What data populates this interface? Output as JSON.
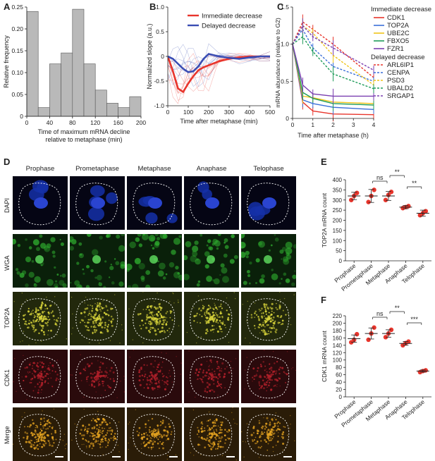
{
  "panels": {
    "A": {
      "letter": "A"
    },
    "B": {
      "letter": "B"
    },
    "C": {
      "letter": "C"
    },
    "D": {
      "letter": "D"
    },
    "E": {
      "letter": "E"
    },
    "F": {
      "letter": "F"
    }
  },
  "chart_data": [
    {
      "id": "A",
      "type": "bar",
      "xlabel": "Time of maximum mRNA decline relative to metaphase (min)",
      "xlabel_line1": "Time of maximum mRNA decline",
      "xlabel_line2": "relative to metaphase (min)",
      "ylabel": "Relative frequency",
      "bin_edges": [
        0,
        20,
        40,
        60,
        80,
        100,
        120,
        140,
        160,
        180,
        200
      ],
      "values": [
        0.24,
        0.02,
        0.12,
        0.145,
        0.245,
        0.12,
        0.06,
        0.03,
        0.02,
        0.045
      ],
      "xticks": [
        "0",
        "40",
        "80",
        "120",
        "160",
        "200"
      ],
      "yticks": [
        "0",
        "0.05",
        "0.10",
        "0.15",
        "0.20",
        "0.25"
      ],
      "ylim": [
        0,
        0.25
      ],
      "bar_color": "#b9b9b9"
    },
    {
      "id": "B",
      "type": "line",
      "xlabel": "Time after metaphase (min)",
      "ylabel": "Normalized slope (a.u.)",
      "xticks": [
        "0",
        "100",
        "200",
        "300",
        "400",
        "500"
      ],
      "yticks": [
        "-1.0",
        "-0.5",
        "0",
        "0.5",
        "1.0"
      ],
      "xlim": [
        0,
        500
      ],
      "ylim": [
        -1,
        1
      ],
      "legend_position": "top-right",
      "series": [
        {
          "name": "Immediate decrease",
          "color": "#e8352c",
          "x": [
            0,
            25,
            50,
            75,
            100,
            125,
            150,
            175,
            200,
            250,
            300,
            350,
            400,
            450,
            500
          ],
          "y": [
            0,
            -0.3,
            -0.65,
            -0.72,
            -0.55,
            -0.4,
            -0.28,
            -0.22,
            -0.18,
            -0.1,
            -0.05,
            -0.02,
            0,
            0,
            0
          ]
        },
        {
          "name": "Delayed decrease",
          "color": "#3a4db3",
          "x": [
            0,
            25,
            50,
            75,
            100,
            125,
            150,
            175,
            200,
            250,
            300,
            350,
            400,
            450,
            500
          ],
          "y": [
            0,
            -0.05,
            -0.15,
            -0.25,
            -0.32,
            -0.3,
            -0.2,
            -0.05,
            0.05,
            0.0,
            -0.03,
            -0.05,
            -0.02,
            0,
            0
          ]
        }
      ]
    },
    {
      "id": "C",
      "type": "line",
      "xlabel": "Time after metaphase (h)",
      "ylabel": "mRNA abundance (relative to G2)",
      "x": [
        0,
        0.5,
        1,
        2,
        4
      ],
      "xticks": [
        "0",
        "1",
        "2",
        "3",
        "4"
      ],
      "yticks": [
        "0",
        "0.5",
        "1.0",
        "1.5"
      ],
      "ylim": [
        0,
        1.5
      ],
      "legend_group1": "Immediate decrease",
      "legend_group2": "Delayed decrease",
      "series": [
        {
          "name": "CDK1",
          "color": "#e8352c",
          "style": "solid",
          "y": [
            1.0,
            0.22,
            0.1,
            0.06,
            0.05
          ]
        },
        {
          "name": "TOP2A",
          "color": "#3a6fd8",
          "style": "solid",
          "y": [
            1.0,
            0.25,
            0.2,
            0.15,
            0.12
          ]
        },
        {
          "name": "UBE2C",
          "color": "#f0c419",
          "style": "solid",
          "y": [
            1.0,
            0.3,
            0.28,
            0.22,
            0.2
          ]
        },
        {
          "name": "FBXO5",
          "color": "#1f9c5a",
          "style": "solid",
          "y": [
            1.0,
            0.35,
            0.27,
            0.2,
            0.18
          ]
        },
        {
          "name": "FZR1",
          "color": "#7a3fb0",
          "style": "solid",
          "y": [
            1.0,
            0.45,
            0.33,
            0.3,
            0.3
          ]
        },
        {
          "name": "ARL6IP1",
          "color": "#e8352c",
          "style": "dashed",
          "y": [
            1.0,
            1.3,
            1.2,
            1.0,
            0.55
          ]
        },
        {
          "name": "CENPA",
          "color": "#3a6fd8",
          "style": "dashed",
          "y": [
            1.0,
            1.2,
            0.95,
            0.7,
            0.5
          ]
        },
        {
          "name": "PSD3",
          "color": "#f0c419",
          "style": "dashed",
          "y": [
            1.0,
            1.25,
            1.15,
            0.85,
            0.45
          ]
        },
        {
          "name": "UBALD2",
          "color": "#1f9c5a",
          "style": "dashed",
          "y": [
            1.0,
            1.1,
            0.9,
            0.6,
            0.4
          ]
        },
        {
          "name": "SRGAP1",
          "color": "#7a3fb0",
          "style": "dashed",
          "y": [
            1.0,
            1.25,
            1.1,
            0.95,
            0.65
          ]
        }
      ]
    },
    {
      "id": "E",
      "type": "scatter",
      "ylabel": "TOP2A mRNA count",
      "categories": [
        "Prophase",
        "Prometaphase",
        "Metaphase",
        "Anaphase",
        "Telophase"
      ],
      "yticks": [
        "0",
        "50",
        "100",
        "150",
        "200",
        "250",
        "300",
        "350",
        "400"
      ],
      "ylim": [
        0,
        400
      ],
      "means": [
        320,
        320,
        320,
        265,
        235
      ],
      "sd": [
        18,
        32,
        22,
        8,
        15
      ],
      "points": [
        [
          300,
          320,
          335
        ],
        [
          290,
          320,
          350
        ],
        [
          300,
          325,
          340
        ],
        [
          260,
          265,
          270
        ],
        [
          225,
          235,
          245
        ]
      ],
      "significance": [
        {
          "label": "ns",
          "from": 1,
          "to": 2
        },
        {
          "label": "**",
          "from": 2,
          "to": 3
        },
        {
          "label": "**",
          "from": 3,
          "to": 4
        }
      ],
      "dot_color": "#e8352c"
    },
    {
      "id": "F",
      "type": "scatter",
      "ylabel": "CDK1 mRNA count",
      "categories": [
        "Prophase",
        "Prometaphase",
        "Metaphase",
        "Anaphase",
        "Telophase"
      ],
      "yticks": [
        "0",
        "20",
        "40",
        "60",
        "80",
        "100",
        "120",
        "140",
        "160",
        "180",
        "200",
        "220"
      ],
      "ylim": [
        0,
        220
      ],
      "means": [
        158,
        172,
        172,
        145,
        70
      ],
      "sd": [
        10,
        15,
        10,
        5,
        3
      ],
      "points": [
        [
          148,
          155,
          170
        ],
        [
          155,
          172,
          188
        ],
        [
          162,
          172,
          182
        ],
        [
          140,
          146,
          150
        ],
        [
          67,
          70,
          72
        ]
      ],
      "significance": [
        {
          "label": "ns",
          "from": 1,
          "to": 2
        },
        {
          "label": "**",
          "from": 2,
          "to": 3
        },
        {
          "label": "***",
          "from": 3,
          "to": 4
        }
      ],
      "dot_color": "#e8352c"
    }
  ],
  "microscopy": {
    "columns": [
      "Prophase",
      "Prometaphase",
      "Metaphase",
      "Anaphase",
      "Telophase"
    ],
    "rows": [
      {
        "label": "DAPI",
        "color": "#1530a8",
        "bg": "#050514"
      },
      {
        "label": "WGA",
        "color": "#2fae2f",
        "bg": "#0a200a"
      },
      {
        "label": "TOP2A",
        "color": "#d6d23a",
        "bg": "#22280c"
      },
      {
        "label": "CDK1",
        "color": "#b0202a",
        "bg": "#2a0a0c"
      },
      {
        "label": "Merge",
        "color": "#e0a020",
        "bg": "#2a1c08"
      }
    ]
  }
}
